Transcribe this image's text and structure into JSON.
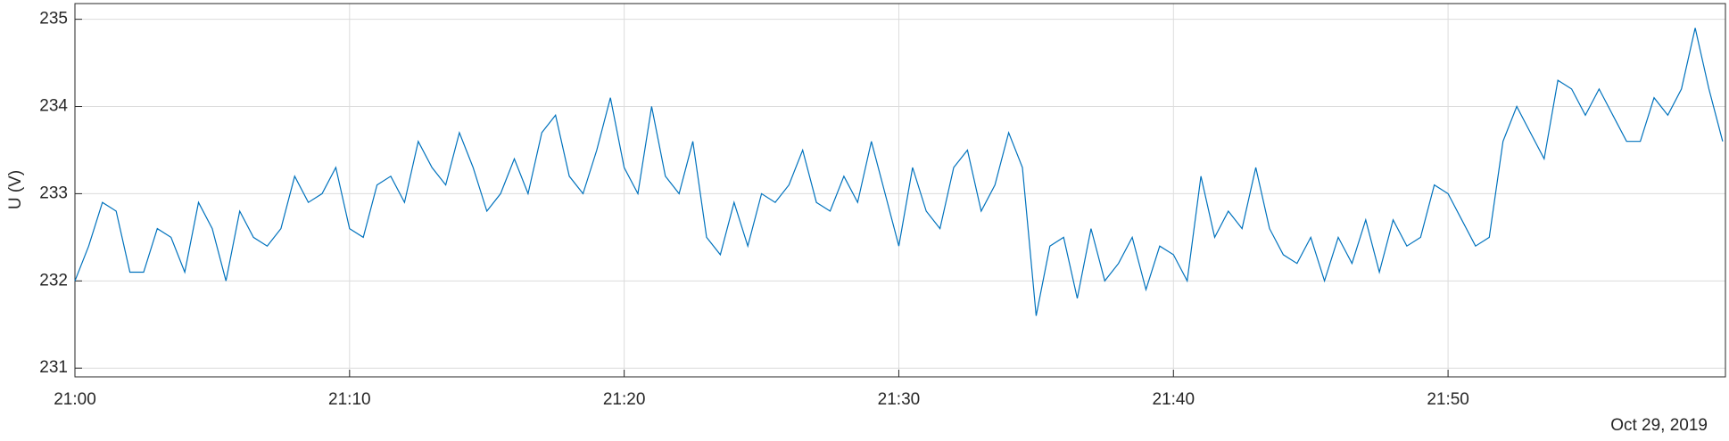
{
  "chart_data": {
    "type": "line",
    "ylabel": "U (V)",
    "date_label": "Oct 29, 2019",
    "x": [
      "21:00:00",
      "21:00:30",
      "21:01:00",
      "21:01:30",
      "21:02:00",
      "21:02:30",
      "21:03:00",
      "21:03:30",
      "21:04:00",
      "21:04:30",
      "21:05:00",
      "21:05:30",
      "21:06:00",
      "21:06:30",
      "21:07:00",
      "21:07:30",
      "21:08:00",
      "21:08:30",
      "21:09:00",
      "21:09:30",
      "21:10:00",
      "21:10:30",
      "21:11:00",
      "21:11:30",
      "21:12:00",
      "21:12:30",
      "21:13:00",
      "21:13:30",
      "21:14:00",
      "21:14:30",
      "21:15:00",
      "21:15:30",
      "21:16:00",
      "21:16:30",
      "21:17:00",
      "21:17:30",
      "21:18:00",
      "21:18:30",
      "21:19:00",
      "21:19:30",
      "21:20:00",
      "21:20:30",
      "21:21:00",
      "21:21:30",
      "21:22:00",
      "21:22:30",
      "21:23:00",
      "21:23:30",
      "21:24:00",
      "21:24:30",
      "21:25:00",
      "21:25:30",
      "21:26:00",
      "21:26:30",
      "21:27:00",
      "21:27:30",
      "21:28:00",
      "21:28:30",
      "21:29:00",
      "21:29:30",
      "21:30:00",
      "21:30:30",
      "21:31:00",
      "21:31:30",
      "21:32:00",
      "21:32:30",
      "21:33:00",
      "21:33:30",
      "21:34:00",
      "21:34:30",
      "21:35:00",
      "21:35:30",
      "21:36:00",
      "21:36:30",
      "21:37:00",
      "21:37:30",
      "21:38:00",
      "21:38:30",
      "21:39:00",
      "21:39:30",
      "21:40:00",
      "21:40:30",
      "21:41:00",
      "21:41:30",
      "21:42:00",
      "21:42:30",
      "21:43:00",
      "21:43:30",
      "21:44:00",
      "21:44:30",
      "21:45:00",
      "21:45:30",
      "21:46:00",
      "21:46:30",
      "21:47:00",
      "21:47:30",
      "21:48:00",
      "21:48:30",
      "21:49:00",
      "21:49:30",
      "21:50:00",
      "21:50:30",
      "21:51:00",
      "21:51:30",
      "21:52:00",
      "21:52:30",
      "21:53:00",
      "21:53:30",
      "21:54:00",
      "21:54:30",
      "21:55:00",
      "21:55:30",
      "21:56:00",
      "21:56:30",
      "21:57:00",
      "21:57:30",
      "21:58:00",
      "21:58:30",
      "21:59:00",
      "21:59:30",
      "22:00:00"
    ],
    "series": [
      {
        "name": "U",
        "color": "#0072BD",
        "values": [
          232.0,
          232.4,
          232.9,
          232.8,
          232.1,
          232.1,
          232.6,
          232.5,
          232.1,
          232.9,
          232.6,
          232.0,
          232.8,
          232.5,
          232.4,
          232.6,
          233.2,
          232.9,
          233.0,
          233.3,
          232.6,
          232.5,
          233.1,
          233.2,
          232.9,
          233.6,
          233.3,
          233.1,
          233.7,
          233.3,
          232.8,
          233.0,
          233.4,
          233.0,
          233.7,
          233.9,
          233.2,
          233.0,
          233.5,
          234.1,
          233.3,
          233.0,
          234.0,
          233.2,
          233.0,
          233.6,
          232.5,
          232.3,
          232.9,
          232.4,
          233.0,
          232.9,
          233.1,
          233.5,
          232.9,
          232.8,
          233.2,
          232.9,
          233.6,
          233.0,
          232.4,
          233.3,
          232.8,
          232.6,
          233.3,
          233.5,
          232.8,
          233.1,
          233.7,
          233.3,
          231.6,
          232.4,
          232.5,
          231.8,
          232.6,
          232.0,
          232.2,
          232.5,
          231.9,
          232.4,
          232.3,
          232.0,
          233.2,
          232.5,
          232.8,
          232.6,
          233.3,
          232.6,
          232.3,
          232.2,
          232.5,
          232.0,
          232.5,
          232.2,
          232.7,
          232.1,
          232.7,
          232.4,
          232.5,
          233.1,
          233.0,
          232.7,
          232.4,
          232.5,
          233.6,
          234.0,
          233.7,
          233.4,
          234.3,
          234.2,
          233.9,
          234.2,
          233.9,
          233.6,
          233.6,
          234.1,
          233.9,
          234.2,
          234.9,
          234.2,
          233.6
        ]
      }
    ],
    "xlim": [
      "21:00:00",
      "22:00:06"
    ],
    "xticks": [
      {
        "value": "21:00:00",
        "label": "21:00"
      },
      {
        "value": "21:10:00",
        "label": "21:10"
      },
      {
        "value": "21:20:00",
        "label": "21:20"
      },
      {
        "value": "21:30:00",
        "label": "21:30"
      },
      {
        "value": "21:40:00",
        "label": "21:40"
      },
      {
        "value": "21:50:00",
        "label": "21:50"
      }
    ],
    "ylim": [
      230.9,
      235.18
    ],
    "yticks": [
      231,
      232,
      233,
      234,
      235
    ],
    "grid": true
  }
}
